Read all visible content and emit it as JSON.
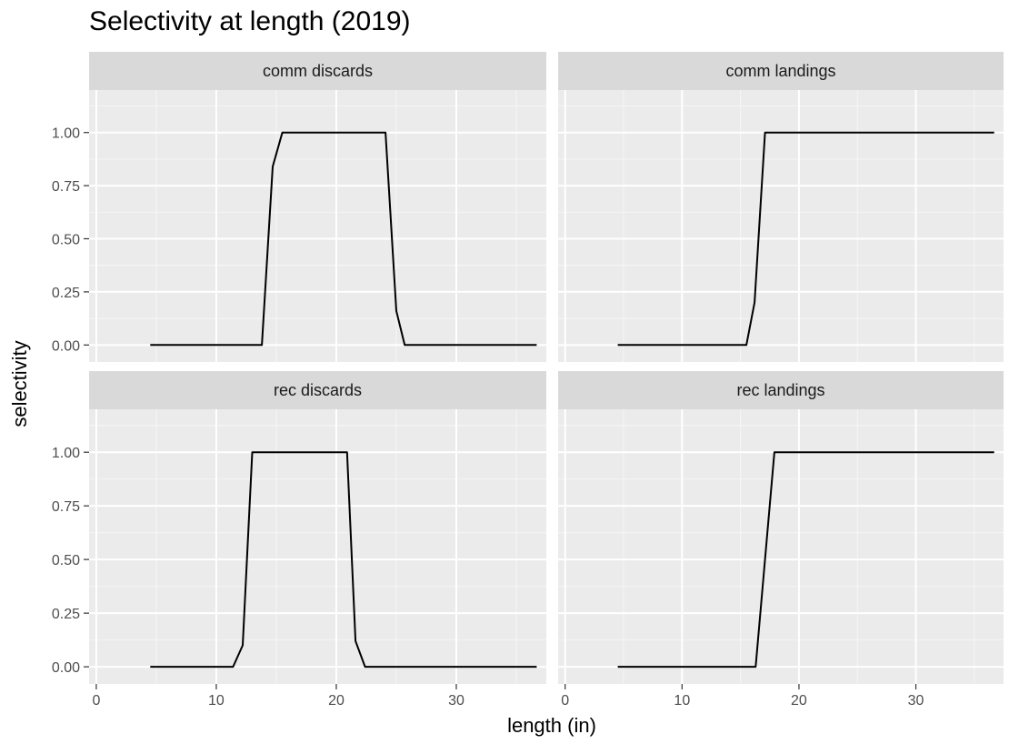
{
  "chart_data": {
    "type": "line",
    "title": "Selectivity at length (2019)",
    "xlabel": "length (in)",
    "ylabel": "selectivity",
    "xlim": [
      -0.6,
      37.5
    ],
    "ylim": [
      -0.08,
      1.2
    ],
    "x_ticks": [
      0,
      10,
      20,
      30
    ],
    "x_tick_labels": [
      "0",
      "10",
      "20",
      "30"
    ],
    "y_ticks": [
      0,
      0.25,
      0.5,
      0.75,
      1
    ],
    "y_tick_labels": [
      "0.00",
      "0.25",
      "0.50",
      "0.75",
      "1.00"
    ],
    "grid": true,
    "line_color": "#000000",
    "panel_background": "#ebebeb",
    "strip_background": "#d9d9d9",
    "layout": "2x2 facets",
    "panels": [
      {
        "label": "comm discards",
        "x": [
          4.5,
          13.8,
          14.7,
          15.5,
          24.1,
          25,
          25.7,
          36.7
        ],
        "y": [
          0,
          0,
          0.84,
          1,
          1,
          0.16,
          0,
          0
        ]
      },
      {
        "label": "comm landings",
        "x": [
          4.5,
          15.5,
          16.2,
          17.1,
          36.7
        ],
        "y": [
          0,
          0,
          0.2,
          1,
          1
        ]
      },
      {
        "label": "rec discards",
        "x": [
          4.5,
          11.4,
          12.2,
          13,
          20.9,
          21.6,
          22.4,
          36.7
        ],
        "y": [
          0,
          0,
          0.1,
          1,
          1,
          0.12,
          0,
          0
        ]
      },
      {
        "label": "rec landings",
        "x": [
          4.5,
          16.3,
          17.9,
          36.7
        ],
        "y": [
          0,
          0,
          1,
          1
        ]
      }
    ]
  }
}
